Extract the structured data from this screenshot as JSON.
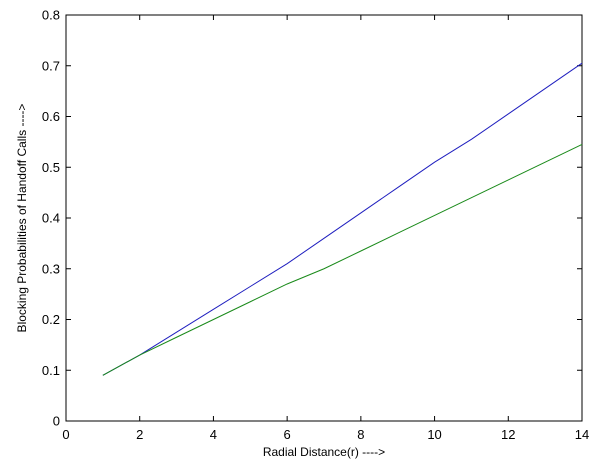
{
  "chart_data": {
    "type": "line",
    "title": "",
    "xlabel": "Radial Distance(r)  ---->",
    "ylabel": "Blocking Probabilities of Handoff Calls ---->",
    "xlim": [
      0,
      14
    ],
    "ylim": [
      0,
      0.8
    ],
    "xticks": [
      "0",
      "2",
      "4",
      "6",
      "8",
      "10",
      "12",
      "14"
    ],
    "yticks": [
      "0",
      "0.1",
      "0.2",
      "0.3",
      "0.4",
      "0.5",
      "0.6",
      "0.7",
      "0.8"
    ],
    "grid": false,
    "legend": "none",
    "series": [
      {
        "color": "#1f1fbf",
        "x": [
          1,
          2,
          3,
          4,
          5,
          6,
          7,
          8,
          9,
          10,
          11,
          12,
          13,
          14
        ],
        "y": [
          0.09,
          0.13,
          0.175,
          0.22,
          0.265,
          0.31,
          0.36,
          0.41,
          0.46,
          0.51,
          0.555,
          0.605,
          0.655,
          0.705
        ]
      },
      {
        "color": "#1a8a1a",
        "x": [
          1,
          2,
          3,
          4,
          5,
          6,
          7,
          8,
          9,
          10,
          11,
          12,
          13,
          14
        ],
        "y": [
          0.09,
          0.13,
          0.165,
          0.2,
          0.235,
          0.27,
          0.3,
          0.335,
          0.37,
          0.405,
          0.44,
          0.475,
          0.51,
          0.545
        ]
      }
    ]
  }
}
